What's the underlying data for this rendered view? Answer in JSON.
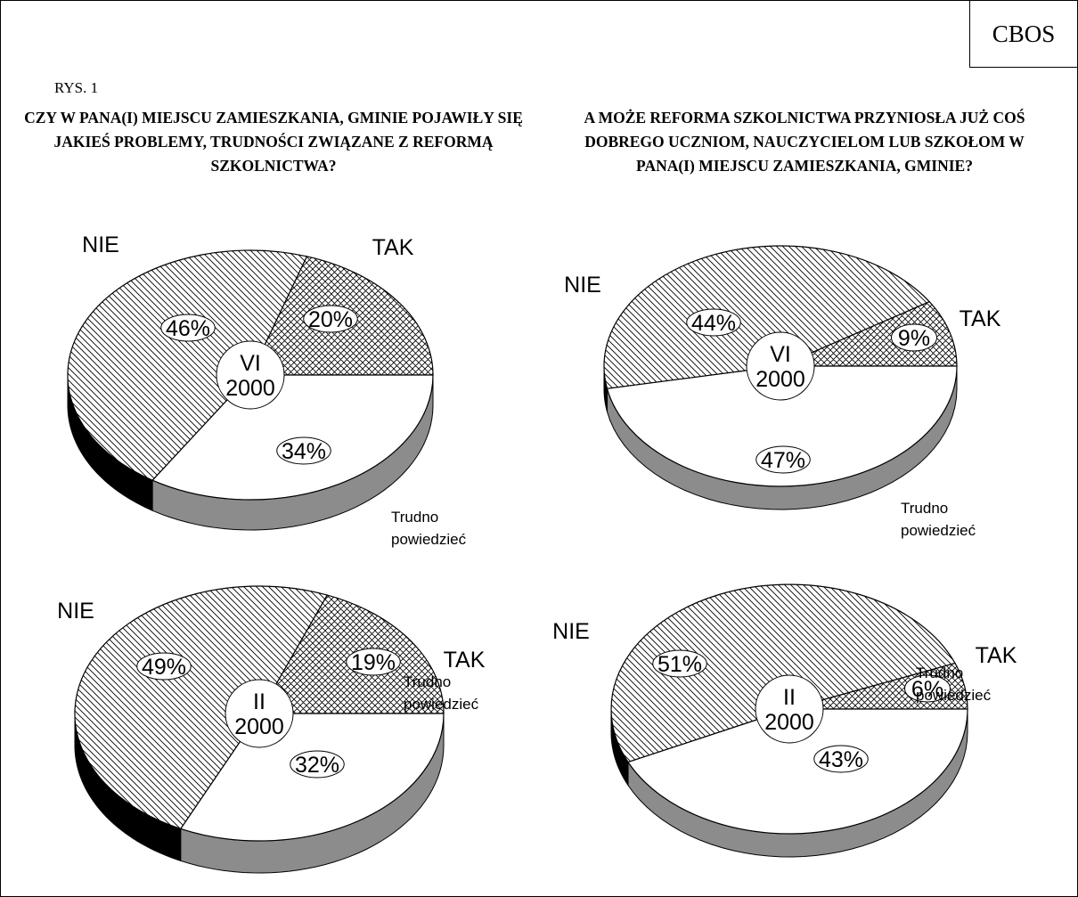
{
  "brand": "CBOS",
  "figure_label": "RYS. 1",
  "questions": {
    "left": "CZY W PANA(I) MIEJSCU ZAMIESZKANIA, GMINIE POJAWIŁY SIĘ JAKIEŚ PROBLEMY, TRUDNOŚCI ZWIĄZANE Z REFORMĄ SZKOLNICTWA?",
    "right": "A MOŻE REFORMA SZKOLNICTWA PRZYNIOSŁA JUŻ COŚ DOBREGO UCZNIOM, NAUCZYCIELOM LUB SZKOŁOM W PANA(I) MIEJSCU ZAMIESZKANIA, GMINIE?"
  },
  "colors": {
    "side_white": "#8c8c8c",
    "side_nie": "#000000",
    "outline": "#000000"
  },
  "chart_data": [
    {
      "type": "pie",
      "question": "left",
      "period": [
        "VI",
        "2000"
      ],
      "slices": [
        {
          "category": "TAK",
          "value": 20,
          "label": "20%",
          "pattern": "crosshatch"
        },
        {
          "category": "Trudno powiedzieć",
          "value": 34,
          "label": "34%",
          "pattern": "none"
        },
        {
          "category": "NIE",
          "value": 46,
          "label": "46%",
          "pattern": "diagonal"
        }
      ]
    },
    {
      "type": "pie",
      "question": "right",
      "period": [
        "VI",
        "2000"
      ],
      "slices": [
        {
          "category": "TAK",
          "value": 9,
          "label": "9%",
          "pattern": "crosshatch"
        },
        {
          "category": "Trudno powiedzieć",
          "value": 47,
          "label": "47%",
          "pattern": "none"
        },
        {
          "category": "NIE",
          "value": 44,
          "label": "44%",
          "pattern": "diagonal"
        }
      ]
    },
    {
      "type": "pie",
      "question": "left",
      "period": [
        "II",
        "2000"
      ],
      "slices": [
        {
          "category": "TAK",
          "value": 19,
          "label": "19%",
          "pattern": "crosshatch"
        },
        {
          "category": "Trudno powiedzieć",
          "value": 32,
          "label": "32%",
          "pattern": "none"
        },
        {
          "category": "NIE",
          "value": 49,
          "label": "49%",
          "pattern": "diagonal"
        }
      ]
    },
    {
      "type": "pie",
      "question": "right",
      "period": [
        "II",
        "2000"
      ],
      "slices": [
        {
          "category": "TAK",
          "value": 6,
          "label": "6%",
          "pattern": "crosshatch"
        },
        {
          "category": "Trudno powiedzieć",
          "value": 43,
          "label": "43%",
          "pattern": "none"
        },
        {
          "category": "NIE",
          "value": 51,
          "label": "51%",
          "pattern": "diagonal"
        }
      ]
    }
  ]
}
